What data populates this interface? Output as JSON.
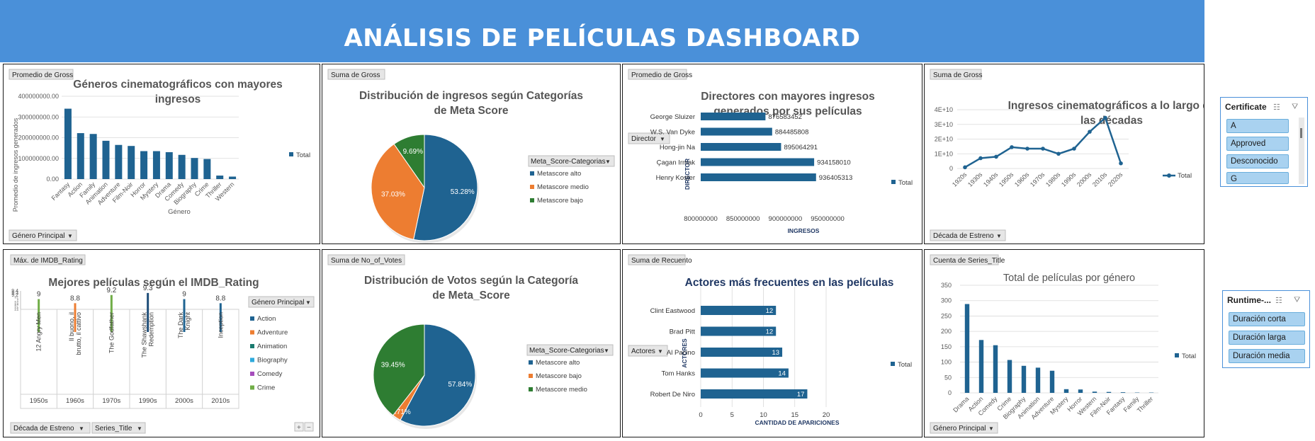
{
  "header": {
    "title": "ANÁLISIS DE PELÍCULAS DASHBOARD"
  },
  "charts": {
    "genres_gross": {
      "value_field": "Promedio de Gross",
      "title_l1": "Géneros cinematográficos con mayores",
      "title_l2": "ingresos",
      "ylabel": "Promedio de ingresos generados",
      "xlabel": "Género",
      "yticks": [
        "0.00",
        "100000000.00",
        "200000000.00",
        "300000000.00",
        "400000000.00"
      ],
      "legend": "Total",
      "filter": "Género Principal"
    },
    "meta_gross": {
      "value_field": "Suma de Gross",
      "title_l1": "Distribución de ingresos según Categorías",
      "title_l2": "de Meta Score",
      "legend_title": "Meta_Score-Categorias",
      "legend": [
        "Metascore alto",
        "Metascore medio",
        "Metascore bajo"
      ]
    },
    "directors": {
      "value_field": "Promedio de Gross",
      "title_l1": "Directores con mayores ingresos",
      "title_l2": "generados por sus películas",
      "filter": "Director",
      "ylabel": "DIRECTOR",
      "xlabel": "INGRESOS",
      "xticks": [
        "800000000",
        "850000000",
        "900000000",
        "950000000"
      ],
      "legend": "Total"
    },
    "decades": {
      "value_field": "Suma de Gross",
      "title_l1": "Ingresos cinematográficos a lo largo de",
      "title_l2": "las décadas",
      "yticks": [
        "0",
        "1E+10",
        "2E+10",
        "3E+10",
        "4E+10"
      ],
      "legend": "Total",
      "filter": "Década de Estreno"
    },
    "imdb": {
      "value_field": "Máx. de IMDB_Rating",
      "title": "Mejores películas según el IMDB_Rating",
      "yticks": [
        "9.4",
        "9.3",
        "9.2",
        "9.1",
        "9",
        "8.9",
        "8.8",
        "8.7",
        "8.6",
        "8.5"
      ],
      "legend_title": "Género Principal",
      "legend": [
        "Action",
        "Adventure",
        "Animation",
        "Biography",
        "Comedy",
        "Crime"
      ],
      "filter1": "Década de Estreno",
      "filter2": "Series_Title"
    },
    "meta_votes": {
      "value_field": "Suma de No_of_Votes",
      "title_l1": "Distribución de Votos según la Categoría",
      "title_l2": "de Meta_Score",
      "legend_title": "Meta_Score-Categorias",
      "legend": [
        "Metascore alto",
        "Metascore bajo",
        "Metascore medio"
      ]
    },
    "actors": {
      "value_field": "Suma de Recuento",
      "title": "Actores más frecuentes en las películas",
      "filter": "Actores",
      "ylabel": "ACTORES",
      "xlabel": "CANTIDAD DE APARICIONES",
      "xticks": [
        "0",
        "5",
        "10",
        "15",
        "20"
      ],
      "legend": "Total"
    },
    "genre_count": {
      "value_field": "Cuenta de Series_Title",
      "title": "Total de películas por género",
      "yticks": [
        "0",
        "50",
        "100",
        "150",
        "200",
        "250",
        "300",
        "350"
      ],
      "legend": "Total",
      "filter": "Género Principal"
    }
  },
  "slicers": {
    "certificate": {
      "title": "Certificate",
      "items": [
        "A",
        "Approved",
        "Desconocido",
        "G"
      ]
    },
    "runtime": {
      "title": "Runtime-...",
      "items": [
        "Duración corta",
        "Duración larga",
        "Duración media"
      ]
    }
  },
  "colors": {
    "header": "#4a90d9",
    "bar": "#1f6391",
    "orange": "#ed7d31",
    "green": "#2e7d32"
  },
  "chart_data": [
    {
      "type": "bar",
      "title": "Géneros cinematográficos con mayores ingresos",
      "xlabel": "Género",
      "ylabel": "Promedio de ingresos generados",
      "ylim": [
        0,
        400000000
      ],
      "categories": [
        "Fantasy",
        "Action",
        "Family",
        "Animation",
        "Adventure",
        "Film-Noir",
        "Horror",
        "Mystery",
        "Drama",
        "Comedy",
        "Biography",
        "Crime",
        "Thriller",
        "Western"
      ],
      "series": [
        {
          "name": "Total",
          "values": [
            340000000,
            222000000,
            218000000,
            185000000,
            165000000,
            160000000,
            135000000,
            135000000,
            130000000,
            117000000,
            102000000,
            97000000,
            17000000,
            12000000
          ]
        }
      ]
    },
    {
      "type": "pie",
      "title": "Distribución de ingresos según Categorías de Meta Score",
      "categories": [
        "Metascore alto",
        "Metascore medio",
        "Metascore bajo"
      ],
      "values": [
        53.28,
        37.03,
        9.69
      ],
      "labels": [
        "53.28%",
        "37.03%",
        "9.69%"
      ]
    },
    {
      "type": "bar",
      "orientation": "horizontal",
      "title": "Directores con mayores ingresos generados por sus películas",
      "xlabel": "INGRESOS",
      "ylabel": "DIRECTOR",
      "xlim": [
        800000000,
        950000000
      ],
      "categories": [
        "George Sluizer",
        "W.S. Van Dyke",
        "Hong-jin Na",
        "Çagan Irmak",
        "Henry Koster"
      ],
      "series": [
        {
          "name": "Total",
          "values": [
            876583452,
            884485808,
            895064291,
            934158010,
            936405313
          ]
        }
      ],
      "labels": [
        "876583452",
        "884485808",
        "895064291",
        "934158010",
        "936405313"
      ]
    },
    {
      "type": "line",
      "title": "Ingresos cinematográficos a lo largo de las décadas",
      "ylim": [
        0,
        40000000000
      ],
      "categories": [
        "1920s",
        "1930s",
        "1940s",
        "1950s",
        "1960s",
        "1970s",
        "1980s",
        "1990s",
        "2000s",
        "2010s",
        "2020s"
      ],
      "series": [
        {
          "name": "Total",
          "values": [
            800000000,
            7000000000,
            8000000000,
            14500000000,
            13500000000,
            13500000000,
            10000000000,
            13500000000,
            25000000000,
            34500000000,
            3500000000
          ]
        }
      ]
    },
    {
      "type": "bar",
      "title": "Mejores películas según el IMDB_Rating",
      "ylim": [
        8.5,
        9.4
      ],
      "categories": [
        "12 Angry Men",
        "Il buono, il brutto, il cattivo",
        "The Godfather",
        "The Shawshank Redemption",
        "The Dark Knight",
        "Inception"
      ],
      "groups": [
        "1950s",
        "1960s",
        "1970s",
        "1990s",
        "2000s",
        "2010s"
      ],
      "series": [
        {
          "name": "Máx. de IMDB_Rating",
          "values": [
            9,
            8.8,
            9.2,
            9.3,
            9,
            8.8
          ]
        }
      ],
      "labels": [
        "9",
        "8.8",
        "9.2",
        "9.3",
        "9",
        "8.8"
      ]
    },
    {
      "type": "pie",
      "title": "Distribución de Votos según la Categoría de Meta_Score",
      "categories": [
        "Metascore alto",
        "Metascore bajo",
        "Metascore medio"
      ],
      "values": [
        57.84,
        2.71,
        39.45
      ],
      "labels": [
        "57.84%",
        "2.71%",
        "39.45%"
      ]
    },
    {
      "type": "bar",
      "orientation": "horizontal",
      "title": "Actores más frecuentes en las películas",
      "xlabel": "CANTIDAD DE APARICIONES",
      "ylabel": "ACTORES",
      "xlim": [
        0,
        20
      ],
      "categories": [
        "Clint Eastwood",
        "Brad Pitt",
        "Al Pacino",
        "Tom Hanks",
        "Robert De Niro"
      ],
      "series": [
        {
          "name": "Total",
          "values": [
            12,
            12,
            13,
            14,
            17
          ]
        }
      ],
      "labels": [
        "12",
        "12",
        "13",
        "14",
        "17"
      ]
    },
    {
      "type": "bar",
      "title": "Total de películas por género",
      "ylim": [
        0,
        350
      ],
      "categories": [
        "Drama",
        "Action",
        "Comedy",
        "Crime",
        "Biography",
        "Animation",
        "Adventure",
        "Mystery",
        "Horror",
        "Western",
        "Film-Noir",
        "Fantasy",
        "Family",
        "Thriller"
      ],
      "series": [
        {
          "name": "Total",
          "values": [
            289,
            172,
            155,
            107,
            88,
            82,
            72,
            12,
            11,
            4,
            3,
            2,
            1,
            1
          ]
        }
      ]
    }
  ]
}
